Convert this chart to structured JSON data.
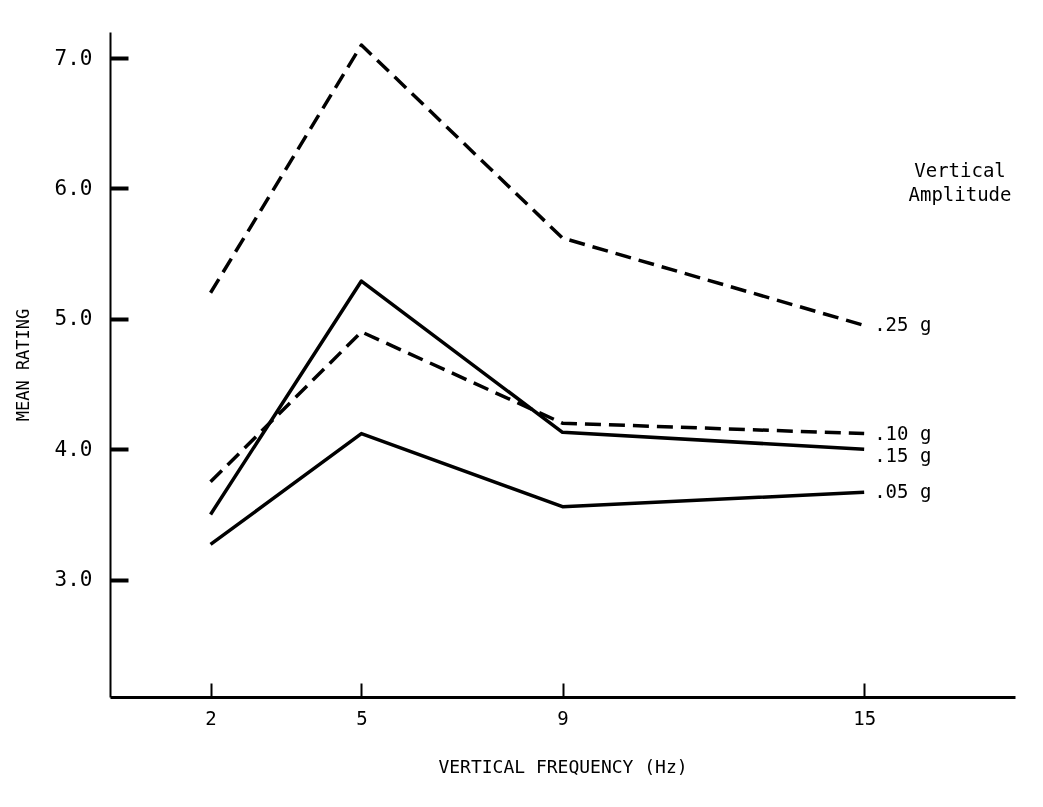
{
  "chart_data": {
    "type": "line",
    "xlabel": "VERTICAL FREQUENCY (Hz)",
    "ylabel": "MEAN RATING",
    "legend_title": "Vertical Amplitude",
    "x": [
      2,
      5,
      9,
      15
    ],
    "xlim": [
      0,
      18
    ],
    "xticks": [
      2,
      5,
      9,
      15
    ],
    "ylim": [
      2.1,
      7.2
    ],
    "yticks": [
      {
        "value": 3,
        "label": "3.0"
      },
      {
        "value": 4,
        "label": "4.0"
      },
      {
        "value": 5,
        "label": "5.0"
      },
      {
        "value": 6,
        "label": "6.0"
      },
      {
        "value": 7,
        "label": "7.0"
      }
    ],
    "grid": false,
    "series": [
      {
        "name": ".25 g",
        "color": "#000000",
        "line_style": "dashed",
        "values": [
          5.2,
          7.1,
          5.62,
          4.95
        ]
      },
      {
        "name": ".10 g",
        "color": "#000000",
        "line_style": "dashed",
        "values": [
          3.75,
          4.9,
          4.2,
          4.12
        ]
      },
      {
        "name": ".15 g",
        "color": "#000000",
        "line_style": "solid",
        "values": [
          3.5,
          5.29,
          4.13,
          4.0
        ]
      },
      {
        "name": ".05 g",
        "color": "#000000",
        "line_style": "solid",
        "values": [
          3.27,
          4.12,
          3.56,
          3.67
        ]
      }
    ]
  }
}
